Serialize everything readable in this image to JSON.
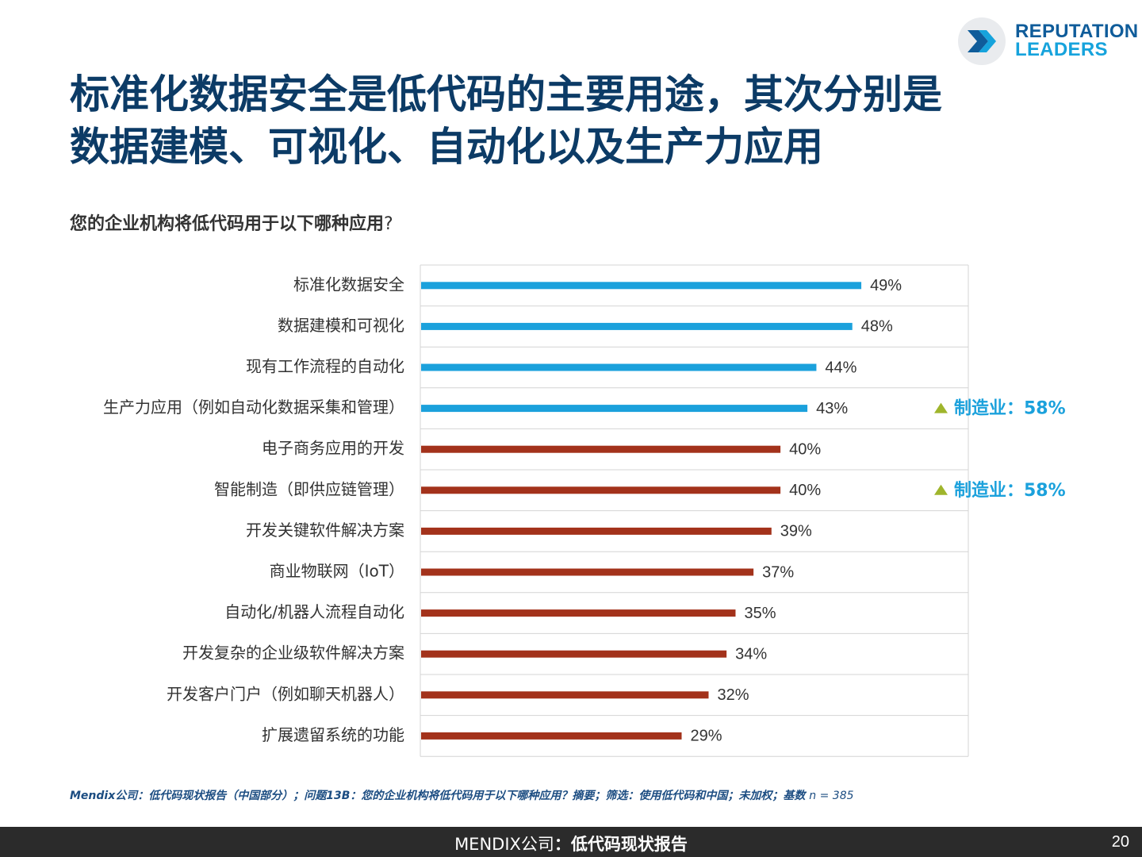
{
  "logo": {
    "line1": "REPUTATION",
    "line2": "LEADERS",
    "icon": "chevron-arrow-icon"
  },
  "title": {
    "line1": "标准化数据安全是低代码的主要用途，其次分别是",
    "line2": "数据建模、可视化、自动化以及生产力应用"
  },
  "question": {
    "text": "您的企业机构将低代码用于以下哪种应用",
    "mark": "?"
  },
  "chart_data": {
    "type": "bar",
    "orientation": "horizontal",
    "xlim": [
      0,
      61
    ],
    "grid": true,
    "categories": [
      "标准化数据安全",
      "数据建模和可视化",
      "现有工作流程的自动化",
      "生产力应用（例如自动化数据采集和管理）",
      "电子商务应用的开发",
      "智能制造（即供应链管理）",
      "开发关键软件解决方案",
      "商业物联网（IoT）",
      "自动化/机器人流程自动化",
      "开发复杂的企业级软件解决方案",
      "开发客户门户（例如聊天机器人）",
      "扩展遗留系统的功能"
    ],
    "values": [
      49,
      48,
      44,
      43,
      40,
      40,
      39,
      37,
      35,
      34,
      32,
      29
    ],
    "value_labels": [
      "49%",
      "48%",
      "44%",
      "43%",
      "40%",
      "40%",
      "39%",
      "37%",
      "35%",
      "34%",
      "32%",
      "29%"
    ],
    "highlight_count": 4,
    "colors": {
      "highlight": "#1ba1dc",
      "other": "#a3321b",
      "grid": "#d4d4d4",
      "note": "#1ba1dc",
      "note_marker": "#9fb52c"
    },
    "annotations": [
      {
        "category_index": 3,
        "text": "制造业：58%"
      },
      {
        "category_index": 5,
        "text": "制造业：58%"
      }
    ]
  },
  "source": {
    "text": "Mendix公司：低代码现状报告（中国部分）；问题13B：您的企业机构将低代码用于以下哪种应用？摘要；筛选：使用低代码和中国；未加权；基数 ",
    "n": "n = 385"
  },
  "footer": {
    "brand": "MENDIX公司",
    "sep": "：",
    "report": "低代码现状报告",
    "page": "20"
  }
}
